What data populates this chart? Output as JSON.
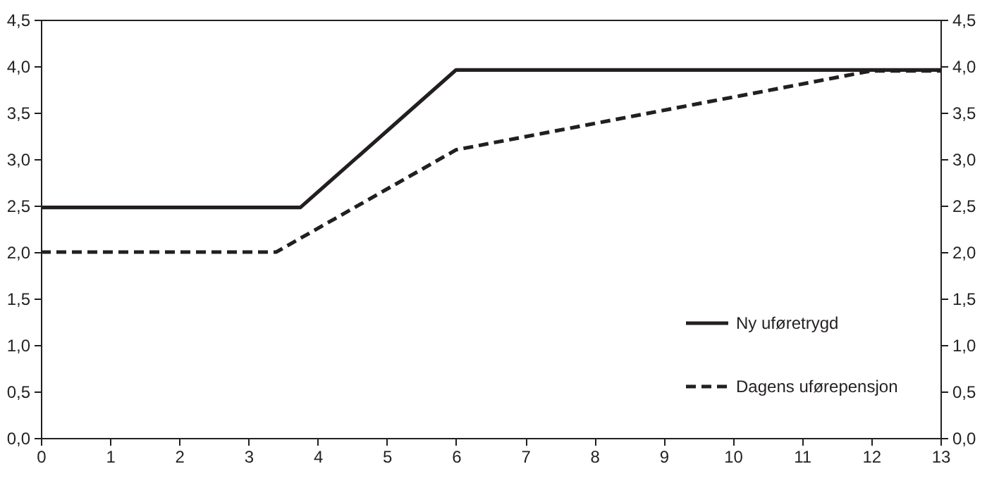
{
  "chart_data": {
    "type": "line",
    "series": [
      {
        "name": "Ny uføretrygd",
        "color": "#231f20",
        "line_style": "solid",
        "x": [
          0,
          3.75,
          6,
          13
        ],
        "values": [
          2.48,
          2.48,
          3.96,
          3.96
        ]
      },
      {
        "name": "Dagens uførepensjon",
        "color": "#231f20",
        "line_style": "dashed",
        "x": [
          0,
          3.4,
          6,
          12,
          13
        ],
        "values": [
          2.0,
          2.0,
          3.1,
          3.95,
          3.95
        ]
      }
    ],
    "xlim": [
      0,
      13
    ],
    "xticks": [
      0,
      1,
      2,
      3,
      4,
      5,
      6,
      7,
      8,
      9,
      10,
      11,
      12,
      13
    ],
    "ylim": [
      0,
      4.5
    ],
    "yticks": [
      {
        "value": 0,
        "label": "0,0"
      },
      {
        "value": 0.5,
        "label": "0,5"
      },
      {
        "value": 1,
        "label": "1,0"
      },
      {
        "value": 1.5,
        "label": "1,5"
      },
      {
        "value": 2,
        "label": "2,0"
      },
      {
        "value": 2.5,
        "label": "2,5"
      },
      {
        "value": 3,
        "label": "3,0"
      },
      {
        "value": 3.5,
        "label": "3,5"
      },
      {
        "value": 4,
        "label": "4,0"
      },
      {
        "value": 4.5,
        "label": "4,5"
      }
    ],
    "y2lim": [
      0,
      4.5
    ],
    "y2ticks": [
      {
        "value": 0,
        "label": "0,0"
      },
      {
        "value": 0.5,
        "label": "0,5"
      },
      {
        "value": 1,
        "label": "1,0"
      },
      {
        "value": 1.5,
        "label": "1,5"
      },
      {
        "value": 2,
        "label": "2,0"
      },
      {
        "value": 2.5,
        "label": "2,5"
      },
      {
        "value": 3,
        "label": "3,0"
      },
      {
        "value": 3.5,
        "label": "3,5"
      },
      {
        "value": 4,
        "label": "4,0"
      },
      {
        "value": 4.5,
        "label": "4,5"
      }
    ],
    "grid": false,
    "legend": "bottom right",
    "marker": "none"
  }
}
